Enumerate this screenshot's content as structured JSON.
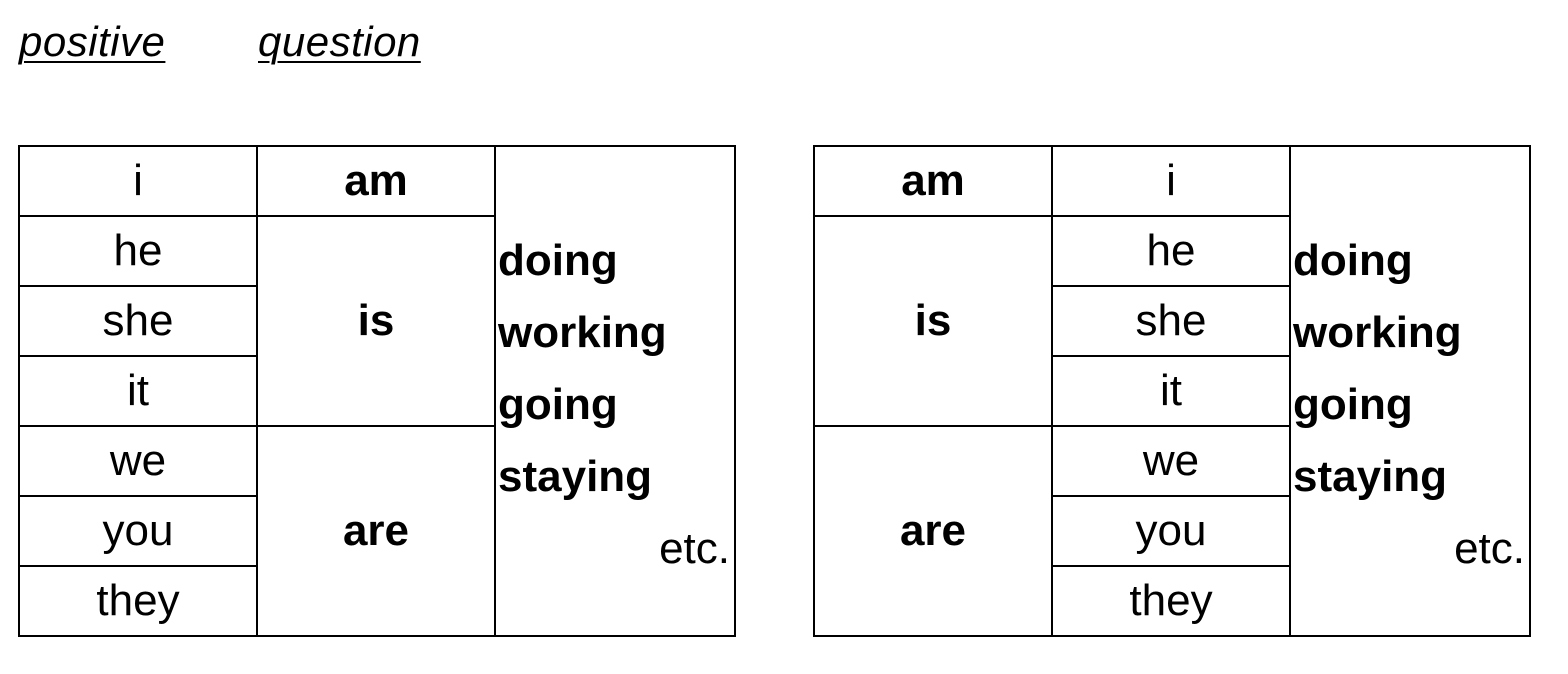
{
  "headings": {
    "positive": "positive",
    "question": "question"
  },
  "table_positive": {
    "pronouns": [
      "i",
      "he",
      "she",
      "it",
      "we",
      "you",
      "they"
    ],
    "verbs": {
      "am": "am",
      "is": "is",
      "are": "are"
    },
    "examples": [
      "doing",
      "working",
      "going",
      "staying"
    ],
    "etc": "etc."
  },
  "table_question": {
    "pronouns": [
      "i",
      "he",
      "she",
      "it",
      "we",
      "you",
      "they"
    ],
    "verbs": {
      "am": "am",
      "is": "is",
      "are": "are"
    },
    "examples": [
      "doing",
      "working",
      "going",
      "staying"
    ],
    "etc": "etc."
  }
}
